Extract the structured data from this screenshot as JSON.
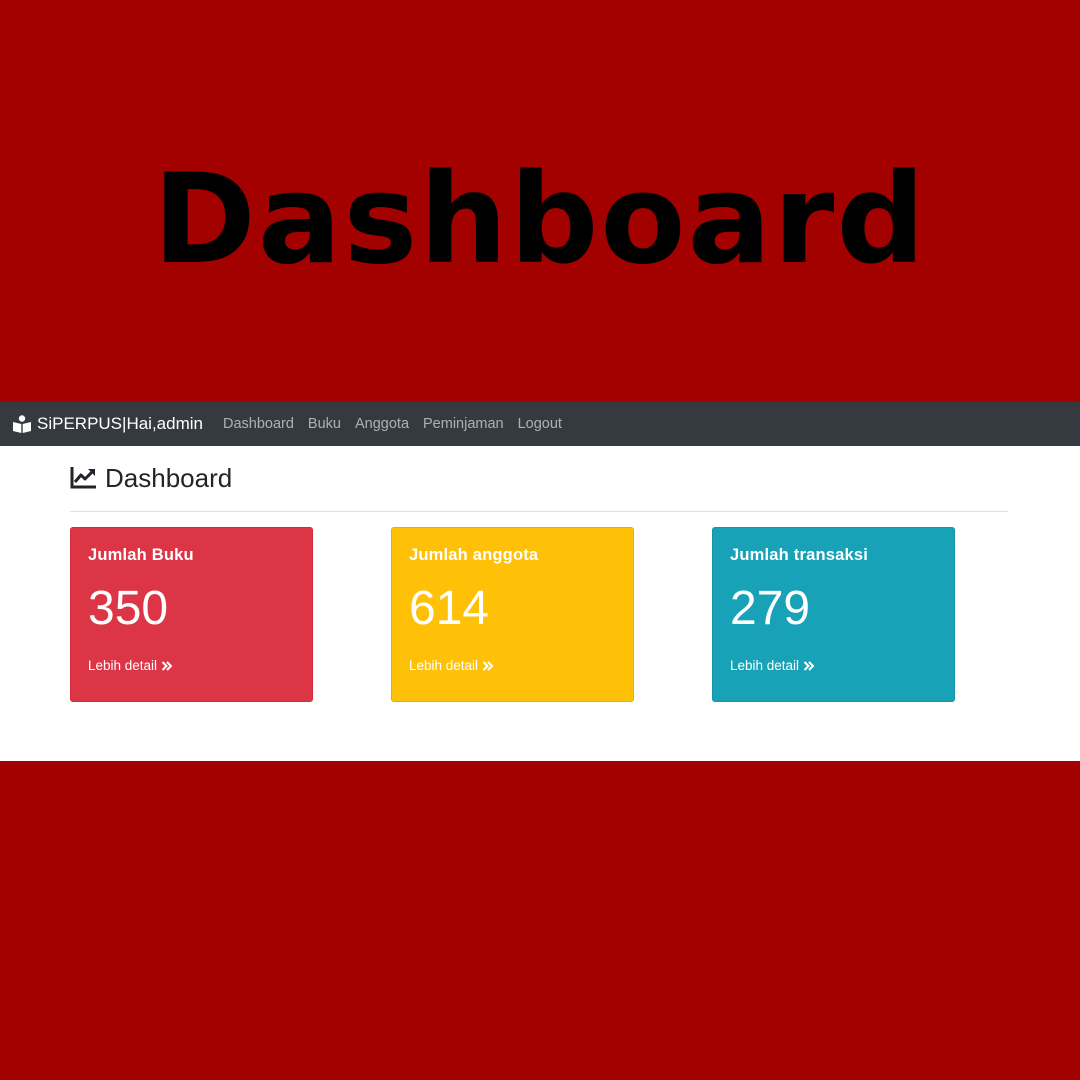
{
  "poster": {
    "title": "Dashboard"
  },
  "navbar": {
    "brand": "SiPERPUS|Hai,admin",
    "brand_icon": "reader-icon",
    "items": [
      {
        "label": "Dashboard"
      },
      {
        "label": "Buku"
      },
      {
        "label": "Anggota"
      },
      {
        "label": "Peminjaman"
      },
      {
        "label": "Logout"
      }
    ]
  },
  "header": {
    "title": "Dashboard",
    "icon": "chart-line-icon"
  },
  "cards": [
    {
      "title": "Jumlah Buku",
      "value": "350",
      "link": "Lebih detail",
      "color": "#dc3545"
    },
    {
      "title": "Jumlah anggota",
      "value": "614",
      "link": "Lebih detail",
      "color": "#ffc107"
    },
    {
      "title": "Jumlah transaksi",
      "value": "279",
      "link": "Lebih detail",
      "color": "#17a2b8"
    }
  ],
  "colors": {
    "poster_bg": "#a30000",
    "navbar_bg": "#343a40"
  }
}
